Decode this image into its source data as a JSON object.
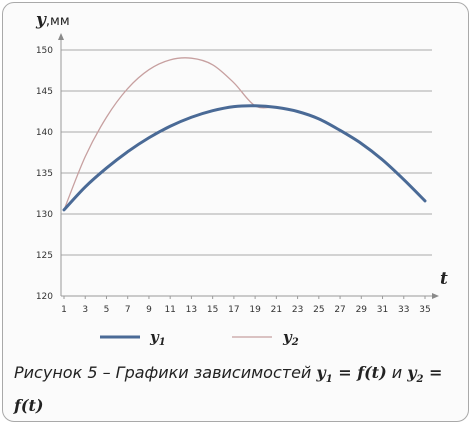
{
  "chart_data": {
    "type": "line",
    "ylabel_var": "y",
    "ylabel_unit": ",мм",
    "xlabel": "t",
    "ylim": [
      120,
      150
    ],
    "yticks": [
      120,
      125,
      130,
      135,
      140,
      145,
      150
    ],
    "x": [
      1,
      3,
      5,
      7,
      9,
      11,
      13,
      15,
      17,
      19,
      21,
      23,
      25,
      27,
      29,
      31,
      33,
      35
    ],
    "series": [
      {
        "name": "y1",
        "color": "#4a6a96",
        "values": [
          130.5,
          133.3,
          135.6,
          137.6,
          139.3,
          140.7,
          141.8,
          142.6,
          143.1,
          143.2,
          143.0,
          142.5,
          141.6,
          140.2,
          138.6,
          136.6,
          134.2,
          131.6
        ]
      },
      {
        "name": "y2",
        "color": "#c7a0a0",
        "values": [
          130.5,
          137.0,
          141.8,
          145.3,
          147.6,
          148.8,
          149.0,
          148.2,
          146.0,
          143.2,
          143.0,
          142.5,
          141.6,
          140.2,
          138.6,
          136.6,
          134.2,
          131.6
        ]
      }
    ]
  },
  "legend": [
    {
      "var": "y",
      "sub": "1"
    },
    {
      "var": "y",
      "sub": "2"
    }
  ],
  "caption": {
    "text1": "Рисунок 5 – Графики зависимостей ",
    "m1_var": "y",
    "m1_sub": "1",
    "m1_rest": " = f(t)",
    "and": " и ",
    "m2_var": "y",
    "m2_sub": "2",
    "m2_rest": " = f(t)"
  }
}
